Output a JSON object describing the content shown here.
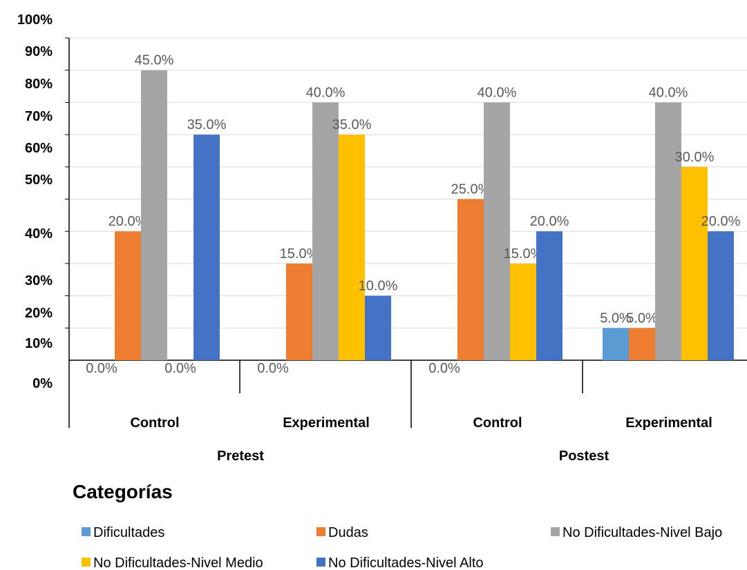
{
  "chart_data": {
    "type": "bar",
    "groups": [
      {
        "label": "Pretest",
        "categories": [
          "Control",
          "Experimental"
        ]
      },
      {
        "label": "Postest",
        "categories": [
          "Control",
          "Experimental"
        ]
      }
    ],
    "categories": [
      "Control",
      "Experimental",
      "Control",
      "Experimental"
    ],
    "series": [
      {
        "name": "Dificultades",
        "color": "#5b9bd5",
        "values": [
          0.0,
          0.0,
          0.0,
          5.0
        ]
      },
      {
        "name": "Dudas",
        "color": "#ed7d31",
        "values": [
          20.0,
          15.0,
          25.0,
          5.0
        ]
      },
      {
        "name": "No Dificultades-Nivel Bajo",
        "color": "#a5a5a5",
        "values": [
          45.0,
          40.0,
          40.0,
          40.0
        ]
      },
      {
        "name": "No Dificultades-Nivel Medio",
        "color": "#ffc000",
        "values": [
          0.0,
          35.0,
          15.0,
          30.0
        ]
      },
      {
        "name": "No Dificultades-Nivel Alto",
        "color": "#4472c4",
        "values": [
          35.0,
          10.0,
          20.0,
          20.0
        ]
      }
    ],
    "data_labels": [
      [
        "0.0%",
        "20.0%",
        "45.0%",
        "0.0%",
        "35.0%"
      ],
      [
        "0.0%",
        "15.0%",
        "40.0%",
        "35.0%",
        "10.0%"
      ],
      [
        "0.0%",
        "25.0%",
        "40.0%",
        "15.0%",
        "20.0%"
      ],
      [
        "5.0%",
        "5.0%",
        "40.0%",
        "30.0%",
        "20.0%"
      ]
    ],
    "y_tick_labels": [
      "100%",
      "90%",
      "80%",
      "70%",
      "60%",
      "50%",
      "40%",
      "30%",
      "20%",
      "10%",
      "0%"
    ],
    "ylim": [
      0,
      100
    ],
    "legend_title": "Categorías",
    "legend_position": "bottom",
    "grid": true
  }
}
